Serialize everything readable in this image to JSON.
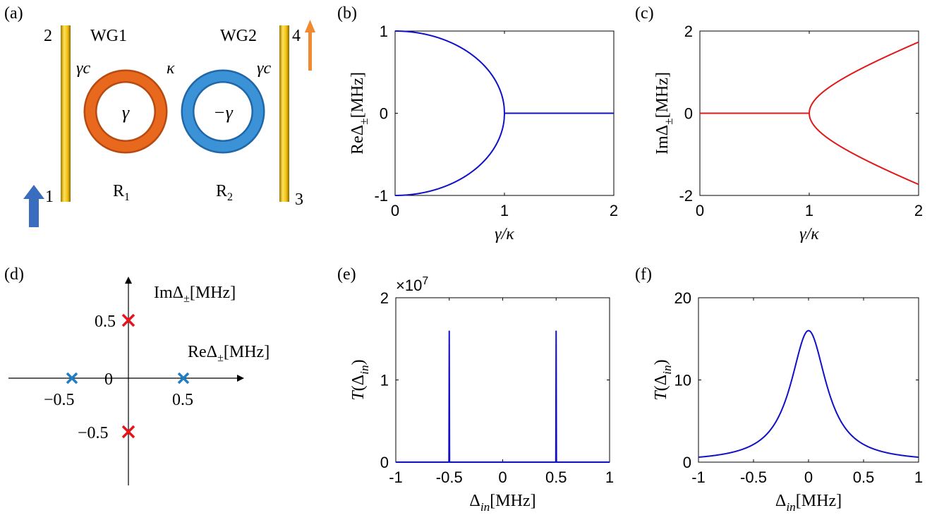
{
  "panels": {
    "a": {
      "label": "(a)",
      "wg1": "WG1",
      "wg2": "WG2",
      "port1": "1",
      "port2": "2",
      "port3": "3",
      "port4": "4",
      "gamma_c_left": "γc",
      "gamma_c_right": "γc",
      "kappa": "κ",
      "gain": "γ",
      "loss": "−γ",
      "r1": "R1",
      "r2": "R2",
      "colors": {
        "waveguide": "#e8b800",
        "ring1": "#e0601a",
        "ring2": "#2f83c4",
        "arrow_in": "#3a6cc0",
        "arrow_out": "#f08a30"
      }
    },
    "d": {
      "label": "(d)",
      "im_axis": "ImΔ±[MHz]",
      "re_axis": "ReΔ±[MHz]",
      "origin": "0",
      "tick_re_neg": "−0.5",
      "tick_re_pos": "0.5",
      "tick_im_pos": "0.5",
      "tick_im_neg": "−0.5",
      "colors": {
        "im_markers": "#e8141c",
        "re_markers": "#1f7fc6"
      }
    }
  },
  "chart_data": [
    {
      "id": "b",
      "panel_label": "(b)",
      "type": "line",
      "xlabel": "γ/κ",
      "ylabel": "ReΔ±[MHz]",
      "xlim": [
        0,
        2
      ],
      "ylim": [
        -1,
        1
      ],
      "xticks": [
        "0",
        "1",
        "2"
      ],
      "yticks": [
        "-1",
        "0",
        "1"
      ],
      "color": "#1010c8",
      "description_of_curves": "sqrt(1-(γ/κ)^2) for γ/κ<1, 0 beyond",
      "series": [
        {
          "x": [
            0,
            0.2,
            0.4,
            0.6,
            0.8,
            0.9,
            0.95,
            0.99,
            1.0,
            1.5,
            2.0
          ],
          "values": [
            1,
            0.98,
            0.917,
            0.8,
            0.6,
            0.436,
            0.312,
            0.141,
            0,
            0,
            0
          ]
        },
        {
          "x": [
            0,
            0.2,
            0.4,
            0.6,
            0.8,
            0.9,
            0.95,
            0.99,
            1.0
          ],
          "values": [
            -1,
            -0.98,
            -0.917,
            -0.8,
            -0.6,
            -0.436,
            -0.312,
            -0.141,
            0
          ]
        }
      ]
    },
    {
      "id": "c",
      "panel_label": "(c)",
      "type": "line",
      "xlabel": "γ/κ",
      "ylabel": "ImΔ±[MHz]",
      "xlim": [
        0,
        2
      ],
      "ylim": [
        -2,
        2
      ],
      "xticks": [
        "0",
        "1",
        "2"
      ],
      "yticks": [
        "-2",
        "0",
        "2"
      ],
      "color": "#e01818",
      "series": [
        {
          "x": [
            0,
            0.5,
            1.0,
            1.01,
            1.05,
            1.1,
            1.2,
            1.4,
            1.6,
            1.8,
            2.0
          ],
          "values": [
            0,
            0,
            0,
            0.142,
            0.32,
            0.458,
            0.663,
            0.98,
            1.249,
            1.497,
            1.732
          ]
        },
        {
          "x": [
            1.0,
            1.01,
            1.05,
            1.1,
            1.2,
            1.4,
            1.6,
            1.8,
            2.0
          ],
          "values": [
            0,
            -0.142,
            -0.32,
            -0.458,
            -0.663,
            -0.98,
            -1.249,
            -1.497,
            -1.732
          ]
        }
      ]
    },
    {
      "id": "e",
      "panel_label": "(e)",
      "type": "line",
      "xlabel": "Δin[MHz]",
      "ylabel": "T(Δin)",
      "scale_label": "×10",
      "scale_exp": "7",
      "xlim": [
        -1,
        1
      ],
      "ylim": [
        0,
        2
      ],
      "xticks": [
        "-1",
        "-0.5",
        "0",
        "0.5",
        "1"
      ],
      "yticks": [
        "0",
        "1",
        "2"
      ],
      "color": "#1010c8",
      "series": [
        {
          "x": [
            -1,
            -0.503,
            -0.5,
            -0.497,
            0.497,
            0.5,
            0.503,
            1
          ],
          "values": [
            0,
            0,
            1.6,
            0,
            0,
            1.6,
            0,
            0
          ]
        }
      ]
    },
    {
      "id": "f",
      "panel_label": "(f)",
      "type": "line",
      "xlabel": "Δin[MHz]",
      "ylabel": "T(Δin)",
      "xlim": [
        -1,
        1
      ],
      "ylim": [
        0,
        20
      ],
      "xticks": [
        "-1",
        "-0.5",
        "0",
        "0.5",
        "1"
      ],
      "yticks": [
        "0",
        "10",
        "20"
      ],
      "color": "#1010c8",
      "series": [
        {
          "x": [
            -1,
            -0.8,
            -0.6,
            -0.4,
            -0.3,
            -0.2,
            -0.1,
            0,
            0.1,
            0.2,
            0.3,
            0.4,
            0.6,
            0.8,
            1
          ],
          "values": [
            0.6,
            1.19,
            2.51,
            5.31,
            7.63,
            10.53,
            13.73,
            16,
            13.73,
            10.53,
            7.63,
            5.31,
            2.51,
            1.19,
            0.6
          ]
        }
      ]
    }
  ]
}
